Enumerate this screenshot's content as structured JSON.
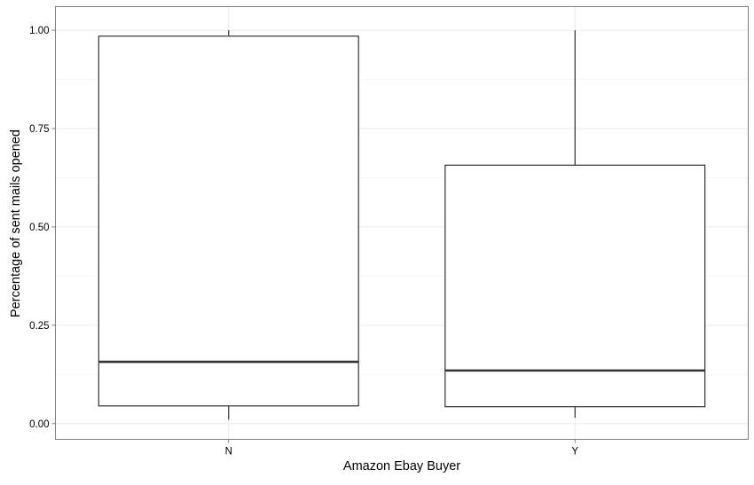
{
  "chart_data": {
    "type": "boxplot",
    "title": "",
    "xlabel": "Amazon Ebay Buyer",
    "ylabel": "Percentage of sent mails opened",
    "categories": [
      "N",
      "Y"
    ],
    "boxes": [
      {
        "category": "N",
        "whisker_low": 0.01,
        "q1": 0.045,
        "median": 0.157,
        "q3": 0.985,
        "whisker_high": 1.0
      },
      {
        "category": "Y",
        "whisker_low": 0.015,
        "q1": 0.043,
        "median": 0.135,
        "q3": 0.657,
        "whisker_high": 1.0
      }
    ],
    "ylim": [
      -0.04,
      1.06
    ],
    "yticks": [
      0.0,
      0.25,
      0.5,
      0.75,
      1.0
    ],
    "ytick_labels": [
      "0.00",
      "0.25",
      "0.50",
      "0.75",
      "1.00"
    ],
    "grid": true,
    "legend": "none"
  },
  "colors": {
    "background": "#ffffff",
    "grid_major": "#ebebeb",
    "grid_minor": "#f5f5f5",
    "panel_border": "#7f7f7f",
    "box_stroke": "#333333",
    "box_fill": "#ffffff"
  }
}
